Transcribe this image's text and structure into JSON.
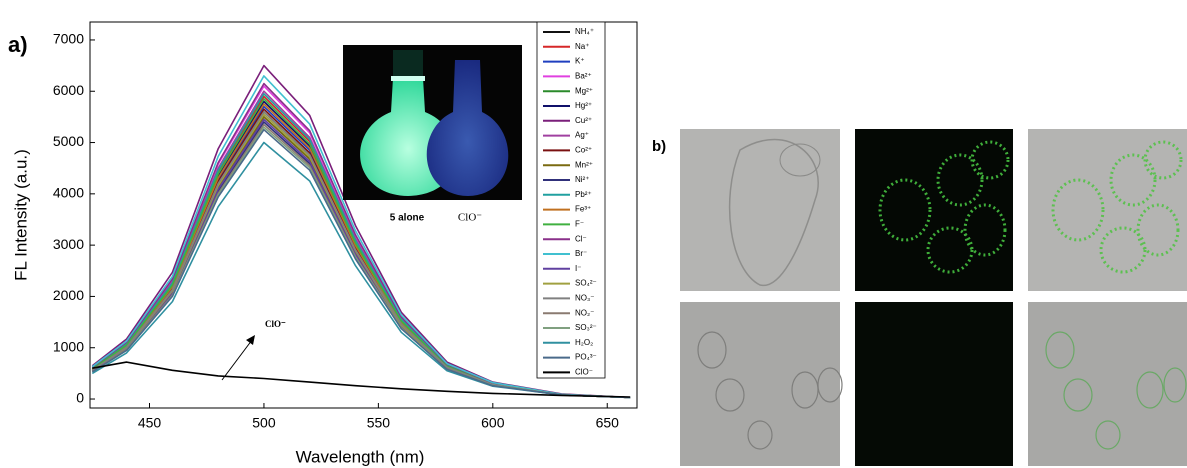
{
  "chart_data": {
    "type": "line",
    "panel_label": "a)",
    "xlabel": "Wavelength (nm)",
    "ylabel": "FL Intensity (a.u.)",
    "annotation": "ClO⁻",
    "inset_labels": [
      "5 alone",
      "ClO⁻"
    ],
    "xlim": [
      424,
      663
    ],
    "xticks": [
      450,
      500,
      550,
      600,
      650
    ],
    "ylim": [
      -175,
      7350
    ],
    "yticks": [
      0,
      1000,
      2000,
      3000,
      4000,
      5000,
      6000,
      7000
    ],
    "x": [
      425,
      440,
      460,
      480,
      500,
      520,
      540,
      560,
      580,
      600,
      630,
      660
    ],
    "series": [
      {
        "name": "NH₄⁺",
        "color": "#111111",
        "values": [
          560,
          1010,
          2130,
          4200,
          5600,
          4760,
          2910,
          1460,
          620,
          280,
          80,
          30
        ]
      },
      {
        "name": "Na⁺",
        "color": "#d62728",
        "values": [
          590,
          1060,
          2240,
          4430,
          5900,
          5020,
          3070,
          1530,
          650,
          300,
          90,
          30
        ]
      },
      {
        "name": "K⁺",
        "color": "#1f3fbf",
        "values": [
          570,
          1030,
          2170,
          4280,
          5700,
          4850,
          2960,
          1480,
          630,
          290,
          90,
          30
        ]
      },
      {
        "name": "Ba²⁺",
        "color": "#e040e0",
        "values": [
          610,
          1100,
          2320,
          4580,
          6100,
          5190,
          3170,
          1590,
          670,
          310,
          90,
          30
        ]
      },
      {
        "name": "Mg²⁺",
        "color": "#2a8a2a",
        "values": [
          550,
          990,
          2090,
          4130,
          5500,
          4680,
          2860,
          1430,
          610,
          280,
          80,
          30
        ]
      },
      {
        "name": "Hg²⁺",
        "color": "#10106a",
        "values": [
          580,
          1040,
          2200,
          4350,
          5800,
          4930,
          3020,
          1510,
          640,
          290,
          90,
          30
        ]
      },
      {
        "name": "Cu²⁺",
        "color": "#7a1f7a",
        "values": [
          650,
          1170,
          2470,
          4880,
          6500,
          5530,
          3380,
          1690,
          720,
          330,
          100,
          30
        ]
      },
      {
        "name": "Ag⁺",
        "color": "#a040a0",
        "values": [
          600,
          1080,
          2280,
          4500,
          6000,
          5100,
          3120,
          1560,
          660,
          300,
          90,
          30
        ]
      },
      {
        "name": "Co²⁺",
        "color": "#7a1010",
        "values": [
          570,
          1020,
          2150,
          4240,
          5650,
          4800,
          2940,
          1470,
          620,
          280,
          80,
          30
        ]
      },
      {
        "name": "Mn²⁺",
        "color": "#7a6a10",
        "values": [
          550,
          990,
          2090,
          4130,
          5500,
          4680,
          2860,
          1430,
          610,
          280,
          80,
          30
        ]
      },
      {
        "name": "Ni²⁺",
        "color": "#30307a",
        "values": [
          540,
          970,
          2050,
          4050,
          5400,
          4590,
          2810,
          1400,
          590,
          270,
          80,
          30
        ]
      },
      {
        "name": "Pb²⁺",
        "color": "#20a0a0",
        "values": [
          600,
          1070,
          2260,
          4460,
          5950,
          5060,
          3090,
          1550,
          650,
          300,
          90,
          30
        ]
      },
      {
        "name": "Fe³⁺",
        "color": "#c07020",
        "values": [
          580,
          1040,
          2190,
          4310,
          5750,
          4890,
          2990,
          1500,
          630,
          290,
          90,
          30
        ]
      },
      {
        "name": "F⁻",
        "color": "#40b040",
        "values": [
          590,
          1050,
          2220,
          4390,
          5850,
          4970,
          3040,
          1520,
          640,
          290,
          90,
          30
        ]
      },
      {
        "name": "Cl⁻",
        "color": "#8a308a",
        "values": [
          620,
          1110,
          2340,
          4610,
          6150,
          5230,
          3200,
          1600,
          680,
          310,
          90,
          30
        ]
      },
      {
        "name": "Br⁻",
        "color": "#40c0d0",
        "values": [
          630,
          1130,
          2390,
          4730,
          6300,
          5360,
          3280,
          1640,
          690,
          320,
          90,
          30
        ]
      },
      {
        "name": "I⁻",
        "color": "#6040a0",
        "values": [
          550,
          980,
          2070,
          4090,
          5450,
          4630,
          2830,
          1420,
          600,
          270,
          80,
          30
        ]
      },
      {
        "name": "SO₄²⁻",
        "color": "#a0a040",
        "values": [
          560,
          1000,
          2110,
          4160,
          5550,
          4720,
          2890,
          1440,
          610,
          280,
          80,
          30
        ]
      },
      {
        "name": "NO₃⁻",
        "color": "#808080",
        "values": [
          560,
          1010,
          2130,
          4200,
          5600,
          4760,
          2910,
          1460,
          620,
          280,
          80,
          30
        ]
      },
      {
        "name": "NO₂⁻",
        "color": "#8a7a70",
        "values": [
          540,
          960,
          2030,
          4010,
          5350,
          4550,
          2780,
          1390,
          590,
          270,
          80,
          30
        ]
      },
      {
        "name": "SO₃²⁻",
        "color": "#80a080",
        "values": [
          530,
          950,
          2010,
          3980,
          5300,
          4510,
          2760,
          1380,
          580,
          270,
          80,
          30
        ]
      },
      {
        "name": "H₂O₂",
        "color": "#3090a0",
        "values": [
          500,
          900,
          1900,
          3750,
          5000,
          4250,
          2600,
          1300,
          550,
          250,
          80,
          30
        ]
      },
      {
        "name": "PO₄³⁻",
        "color": "#4a6a8a",
        "values": [
          530,
          950,
          2000,
          3940,
          5250,
          4460,
          2730,
          1370,
          580,
          260,
          80,
          30
        ]
      },
      {
        "name": "ClO⁻",
        "color": "#000000",
        "values": [
          600,
          720,
          560,
          450,
          400,
          330,
          260,
          200,
          150,
          110,
          70,
          40
        ]
      }
    ]
  },
  "panel_b": {
    "label": "b)"
  }
}
